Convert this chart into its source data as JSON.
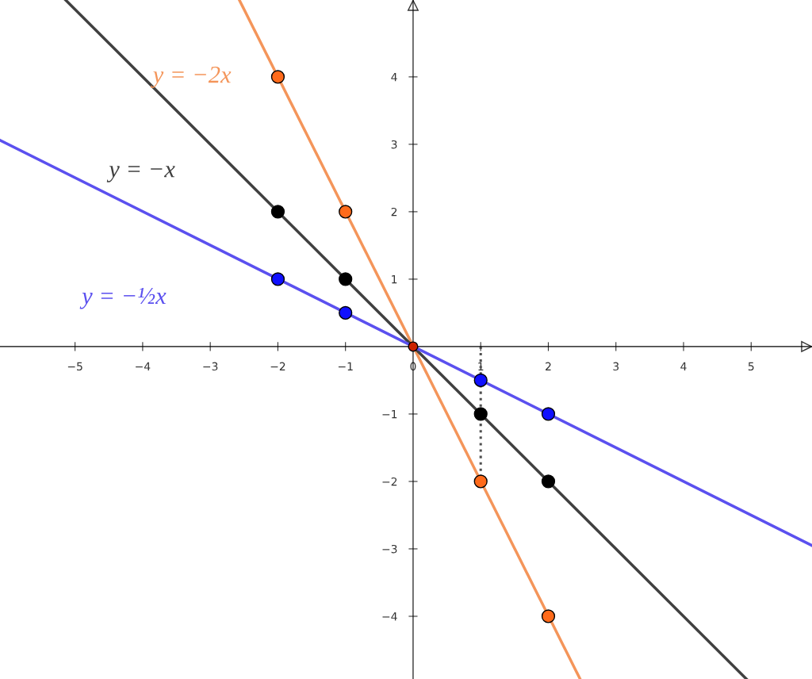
{
  "chart_data": {
    "type": "line",
    "xlim": [
      -6.11,
      5.9
    ],
    "ylim": [
      -4.93,
      5.14
    ],
    "xticks": [
      {
        "value": -5,
        "label": "−5"
      },
      {
        "value": -4,
        "label": "−4"
      },
      {
        "value": -3,
        "label": "−3"
      },
      {
        "value": -2,
        "label": "−2"
      },
      {
        "value": -1,
        "label": "−1"
      },
      0,
      1,
      2,
      3,
      4,
      5
    ],
    "yticks": [
      {
        "value": -4,
        "label": "−4"
      },
      {
        "value": -3,
        "label": "−3"
      },
      {
        "value": -2,
        "label": "−2"
      },
      {
        "value": -1,
        "label": "−1"
      },
      1,
      2,
      3,
      4
    ],
    "series": [
      {
        "name": "y = −2x",
        "color": "#f4955a",
        "x": [
          -2.57,
          2.47
        ],
        "values": [
          5.14,
          -4.93
        ]
      },
      {
        "name": "y = −x",
        "color": "#404040",
        "x": [
          -5.14,
          4.93
        ],
        "values": [
          5.14,
          -4.93
        ]
      },
      {
        "name": "y = −½x",
        "color": "#5b50ef",
        "x": [
          -6.11,
          5.9
        ],
        "values": [
          3.06,
          -2.95
        ]
      },
      {
        "type": "line",
        "line_style": "dotted",
        "color": "#505050",
        "x": [
          1,
          1
        ],
        "values": [
          0,
          -2
        ]
      },
      {
        "type": "scatter",
        "marker": "circle",
        "color": "#ff6a1a",
        "x": [
          -2,
          -1,
          1,
          2
        ],
        "values": [
          4,
          2,
          -2,
          -4
        ]
      },
      {
        "type": "scatter",
        "marker": "circle",
        "color": "#000000",
        "x": [
          -2,
          -1,
          1,
          2
        ],
        "values": [
          2,
          1,
          -1,
          -2
        ]
      },
      {
        "type": "scatter",
        "marker": "circle",
        "color": "#1010ff",
        "x": [
          -2,
          -1,
          1,
          2
        ],
        "values": [
          1,
          0.5,
          -0.5,
          -1
        ]
      },
      {
        "type": "scatter",
        "marker": "circle",
        "color": "#cc2200",
        "x": [
          0
        ],
        "values": [
          0
        ]
      }
    ]
  }
}
